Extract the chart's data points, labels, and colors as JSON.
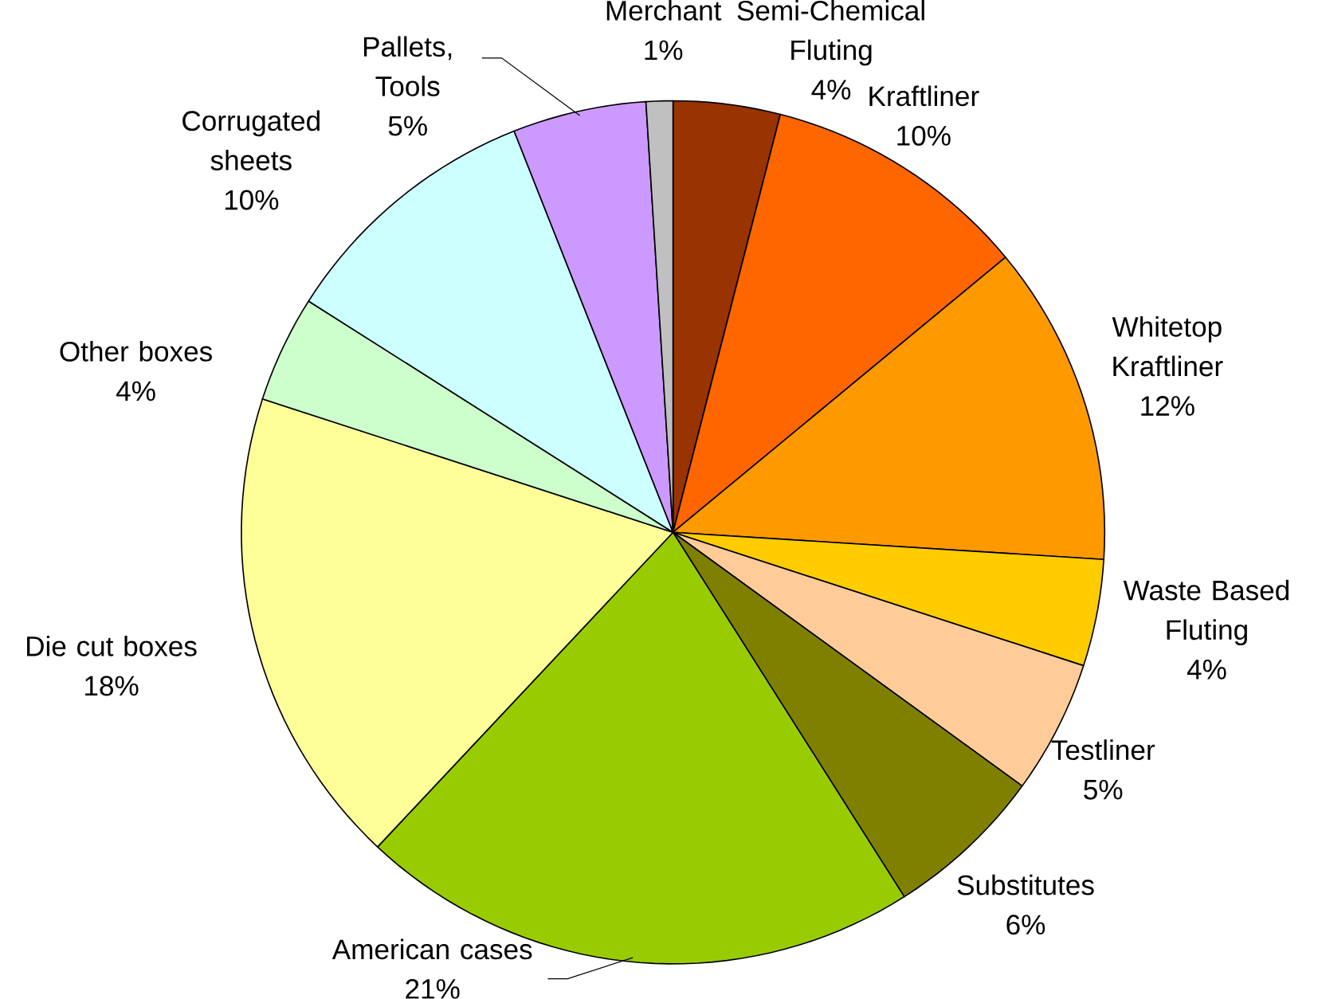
{
  "chart_data": {
    "type": "pie",
    "categories": [
      "Semi-Chemical Fluting",
      "Kraftliner",
      "Whitetop Kraftliner",
      "Waste Based Fluting",
      "Testliner",
      "Substitutes",
      "American cases",
      "Die cut boxes",
      "Other boxes",
      "Corrugated sheets",
      "Pallets, Tools",
      "Merchant"
    ],
    "values": [
      4,
      10,
      12,
      4,
      5,
      6,
      21,
      18,
      4,
      10,
      5,
      1
    ],
    "value_labels": [
      "4%",
      "10%",
      "12%",
      "4%",
      "5%",
      "6%",
      "21%",
      "18%",
      "4%",
      "10%",
      "5%",
      "1%"
    ],
    "colors": [
      "#993300",
      "#ff6600",
      "#ff9900",
      "#ffcc00",
      "#ffcc99",
      "#808000",
      "#99cc00",
      "#ffff99",
      "#ccffcc",
      "#ccffff",
      "#cc99ff",
      "#c0c0c0"
    ]
  }
}
